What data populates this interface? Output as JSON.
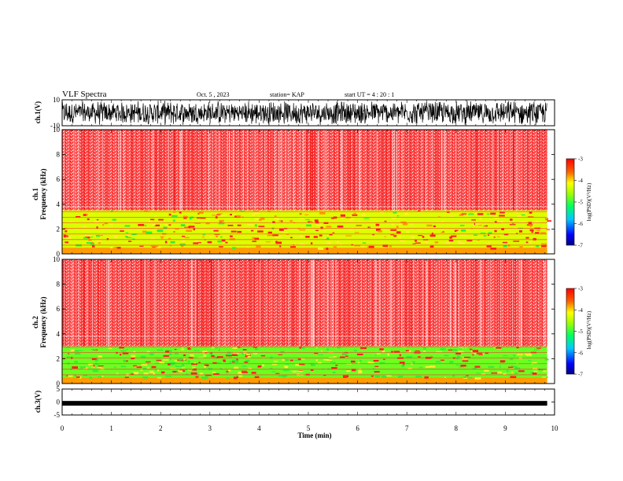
{
  "header": {
    "title": "VLF Spectra",
    "date": "Oct. 5 , 2023",
    "station": "station= KAP",
    "start": "start  UT =   4 : 20 : 1"
  },
  "colors": {
    "spectrum_bg": "#ff3b3b",
    "low_band": "#ff2020",
    "mid_green": "#33ee33",
    "yellow": "#ffee33",
    "trace": "#000000"
  },
  "chart_data": [
    {
      "type": "line",
      "panel": "ch1-waveform",
      "ylabel": "ch.1(V)",
      "ylim": [
        -10,
        10
      ],
      "y_ticks": [
        "10",
        "-10"
      ],
      "xlim": [
        0,
        10
      ],
      "description_values": "dense noisy waveform, amplitude mostly 4 to 10 V peak"
    },
    {
      "type": "heatmap",
      "panel": "ch1-spectrogram",
      "ylabel": "Frequency (kHz)",
      "channel_label": "ch.1",
      "ylim": [
        0,
        10
      ],
      "y_ticks": [
        "0",
        "2",
        "4",
        "6",
        "8",
        "10"
      ],
      "xlim": [
        0,
        9.85
      ],
      "bands": [
        {
          "from_khz": 3.5,
          "to_khz": 10,
          "log_psd": -3.6
        },
        {
          "from_khz": 0.5,
          "to_khz": 3.5,
          "log_psd": -4.3
        },
        {
          "from_khz": 0,
          "to_khz": 0.5,
          "log_psd": -3.8
        }
      ]
    },
    {
      "type": "heatmap",
      "panel": "ch2-spectrogram",
      "ylabel": "Frequency (kHz)",
      "channel_label": "ch.2",
      "ylim": [
        0,
        10
      ],
      "y_ticks": [
        "0",
        "2",
        "4",
        "6",
        "8",
        "10"
      ],
      "xlim": [
        0,
        9.85
      ],
      "bands": [
        {
          "from_khz": 3.0,
          "to_khz": 10,
          "log_psd": -3.6
        },
        {
          "from_khz": 0.5,
          "to_khz": 3.0,
          "log_psd": -4.8
        },
        {
          "from_khz": 0,
          "to_khz": 0.5,
          "log_psd": -3.8
        }
      ]
    },
    {
      "type": "line",
      "panel": "ch3-waveform",
      "ylabel": "ch.3(V)",
      "ylim": [
        -5,
        5
      ],
      "y_ticks": [
        "5",
        "0",
        "-5"
      ],
      "xlim": [
        0,
        10
      ],
      "description_values": "thick near-constant trace around -0.5 V"
    }
  ],
  "x_axis": {
    "label": "Time  (min)",
    "ticks": [
      "0",
      "1",
      "2",
      "3",
      "4",
      "5",
      "6",
      "7",
      "8",
      "9",
      "10"
    ]
  },
  "colorbars": [
    {
      "label": "log(PSD)(V²/Hz)",
      "ticks": [
        "-3",
        "-4",
        "-5",
        "-6",
        "-7"
      ],
      "range": [
        -7,
        -3
      ]
    },
    {
      "label": "log(PSD)(V²/Hz)",
      "ticks": [
        "-3",
        "-4",
        "-5",
        "-6",
        "-7"
      ],
      "range": [
        -7,
        -3
      ]
    }
  ]
}
